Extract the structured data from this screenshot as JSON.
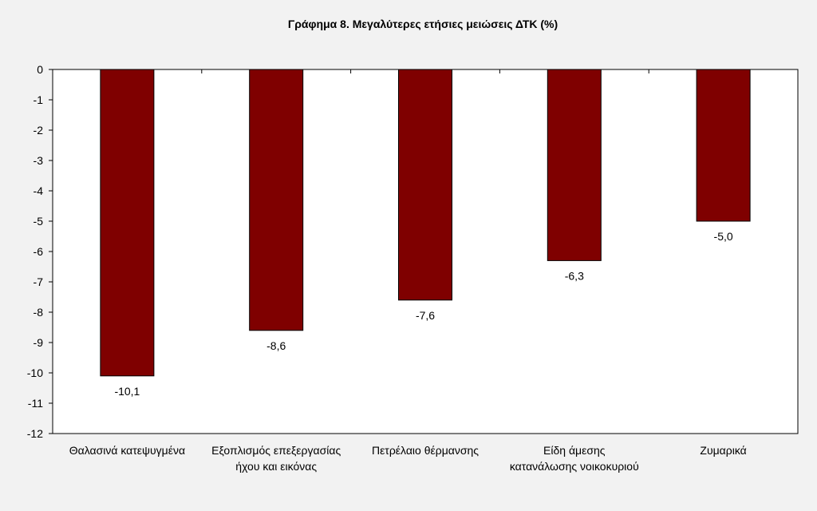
{
  "chart_data": {
    "type": "bar",
    "title": "Γράφημα 8. Μεγαλύτερες ετήσιες μειώσεις ΔΤΚ (%)",
    "categories": [
      [
        "Θαλασινά κατεψυγμένα"
      ],
      [
        "Εξοπλισμός επεξεργασίας",
        "ήχου και εικόνας"
      ],
      [
        "Πετρέλαιο θέρμανσης"
      ],
      [
        "Είδη άμεσης",
        "κατανάλωσης νοικοκυριού"
      ],
      [
        "Ζυμαρικά"
      ]
    ],
    "values": [
      -10.1,
      -8.6,
      -7.6,
      -6.3,
      -5.0
    ],
    "data_labels": [
      "-10,1",
      "-8,6",
      "-7,6",
      "-6,3",
      "-5,0"
    ],
    "ylim": [
      -12,
      0
    ],
    "yticks": [
      0,
      -1,
      -2,
      -3,
      -4,
      -5,
      -6,
      -7,
      -8,
      -9,
      -10,
      -11,
      -12
    ],
    "xlabel": "",
    "ylabel": "",
    "grid": false,
    "bar_color": "#7f0000",
    "plot_background": "#ffffff"
  }
}
